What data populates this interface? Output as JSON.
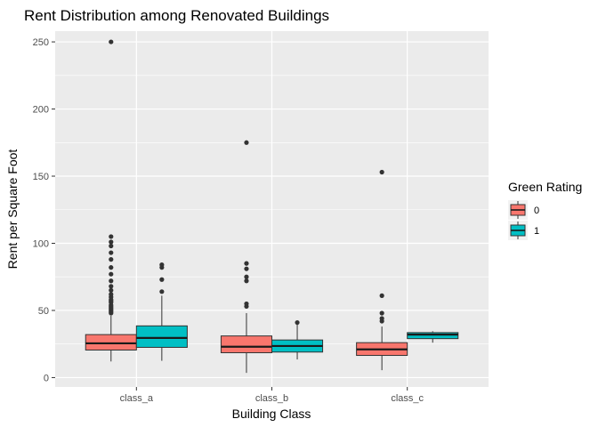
{
  "chart_data": {
    "type": "boxplot",
    "title": "Rent Distribution among Renovated Buildings",
    "xlabel": "Building Class",
    "ylabel": "Rent per Square Foot",
    "categories": [
      "class_a",
      "class_b",
      "class_c"
    ],
    "ylim": [
      -7,
      258
    ],
    "yticks": [
      0,
      50,
      100,
      150,
      200,
      250
    ],
    "grid": true,
    "legend": {
      "title": "Green Rating",
      "position": "right",
      "entries": [
        {
          "label": "0",
          "color": "#F8766D"
        },
        {
          "label": "1",
          "color": "#00BFC4"
        }
      ]
    },
    "series": [
      {
        "name": "0",
        "color": "#F8766D",
        "boxes": [
          {
            "category": "class_a",
            "min": 12,
            "q1": 20.5,
            "median": 25.5,
            "q3": 32,
            "max": 46,
            "outliers": [
              48,
              49,
              50,
              51,
              52,
              53,
              54,
              56,
              57,
              58,
              60,
              62,
              65,
              68,
              72,
              77,
              82,
              88,
              93,
              98,
              101,
              105,
              250
            ]
          },
          {
            "category": "class_b",
            "min": 3.5,
            "q1": 18.5,
            "median": 23,
            "q3": 31,
            "max": 48,
            "outliers": [
              53,
              55,
              72,
              75,
              81,
              85,
              175
            ]
          },
          {
            "category": "class_c",
            "min": 5.5,
            "q1": 16.5,
            "median": 21,
            "q3": 26,
            "max": 38,
            "outliers": [
              42,
              44,
              48,
              61,
              153
            ]
          }
        ]
      },
      {
        "name": "1",
        "color": "#00BFC4",
        "boxes": [
          {
            "category": "class_a",
            "min": 12.5,
            "q1": 22.5,
            "median": 29.5,
            "q3": 38.5,
            "max": 61,
            "outliers": [
              64,
              73,
              82,
              84
            ]
          },
          {
            "category": "class_b",
            "min": 13.5,
            "q1": 19,
            "median": 23.5,
            "q3": 28,
            "max": 40,
            "outliers": [
              41
            ]
          },
          {
            "category": "class_c",
            "min": 26,
            "q1": 29,
            "median": 32,
            "q3": 33.5,
            "max": 34.5,
            "outliers": []
          }
        ]
      }
    ]
  }
}
